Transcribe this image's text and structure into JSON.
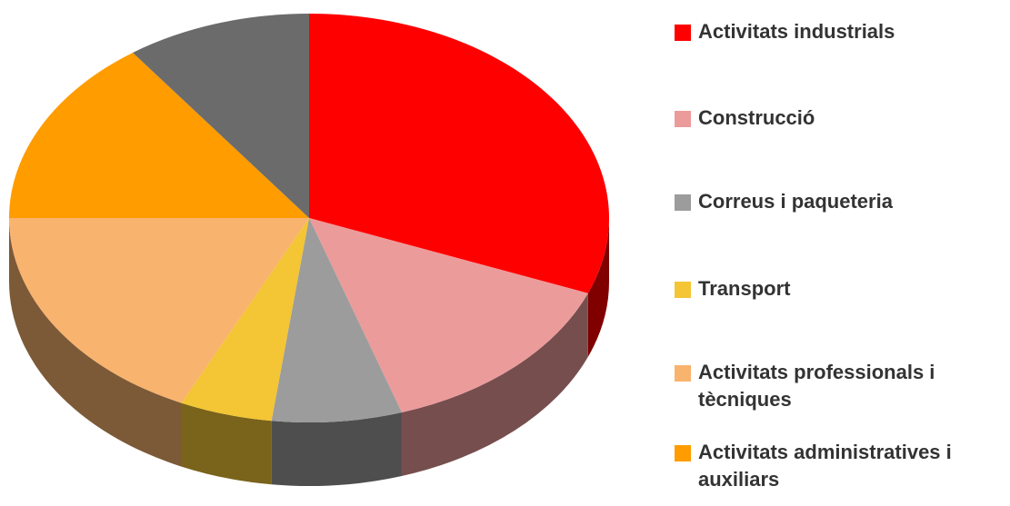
{
  "chart_data": {
    "type": "pie",
    "categories": [
      "Activitats industrials",
      "Construcció",
      "Correus i paqueteria",
      "Transport",
      "Activitats professionals i tècniques",
      "Activitats administratives i auxiliars",
      null
    ],
    "values": [
      31,
      14,
      7,
      5,
      18,
      15,
      10
    ],
    "colors": [
      "#ff0000",
      "#ec9b9b",
      "#9c9c9c",
      "#f4c534",
      "#f8b36e",
      "#ff9c00",
      "#6b6b6b"
    ],
    "legend": "right"
  }
}
